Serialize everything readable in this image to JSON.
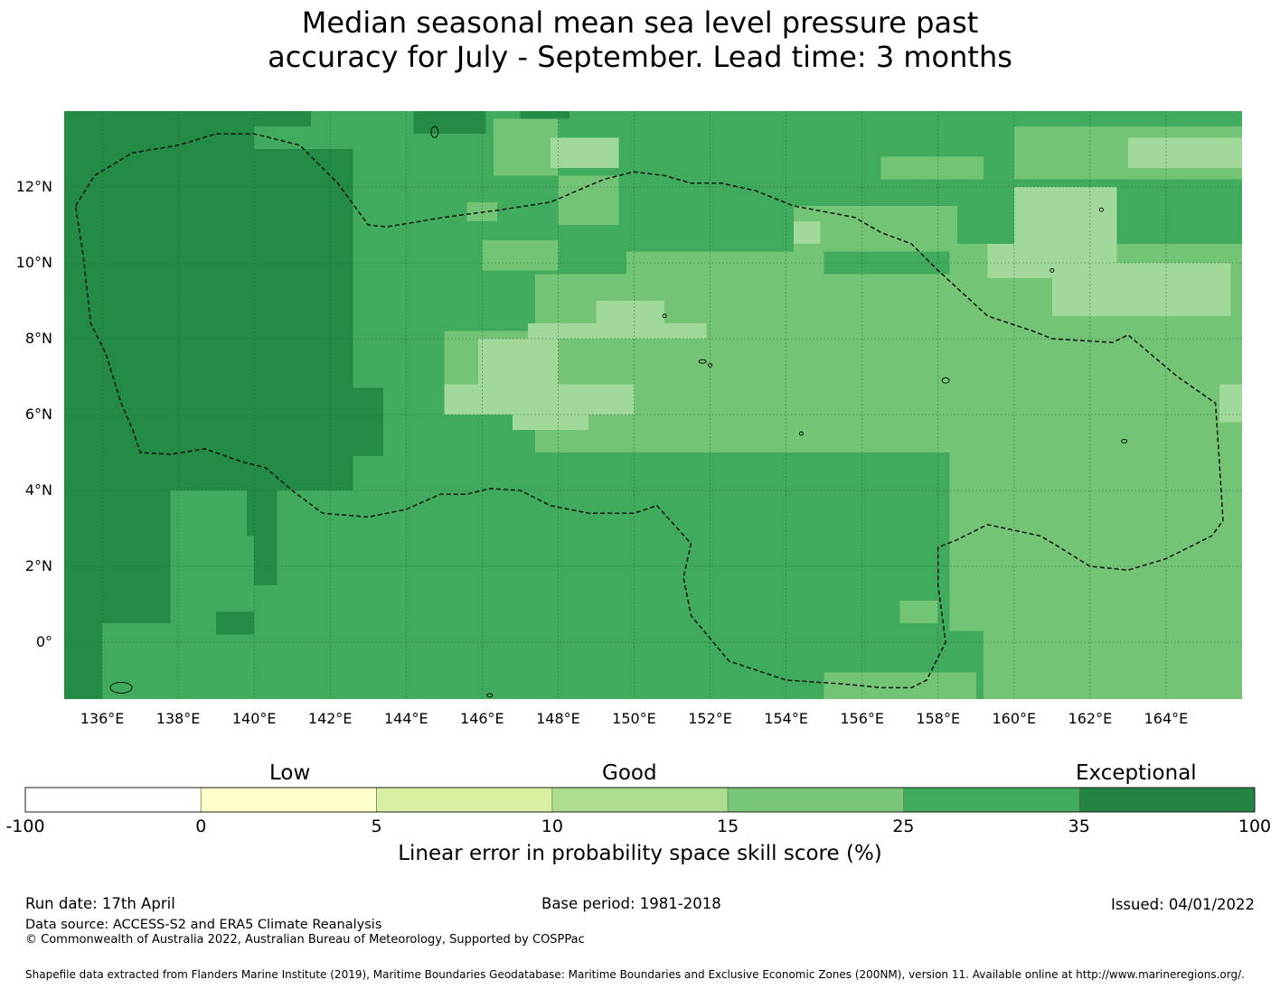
{
  "title": {
    "line1": "Median seasonal mean sea level pressure past",
    "line2": "accuracy for July - September. Lead time: 3 months"
  },
  "map": {
    "lon_ticks": [
      "136°E",
      "138°E",
      "140°E",
      "142°E",
      "144°E",
      "146°E",
      "148°E",
      "150°E",
      "152°E",
      "154°E",
      "156°E",
      "158°E",
      "160°E",
      "162°E",
      "164°E"
    ],
    "lat_ticks": [
      "12°N",
      "10°N",
      "8°N",
      "6°N",
      "4°N",
      "2°N",
      "0°"
    ],
    "extent": {
      "lon": [
        135.0,
        166.0
      ],
      "lat": [
        -1.5,
        14.0
      ]
    },
    "grid_step_deg": 0.833,
    "gridlines": true,
    "eez_boundary": "dashed",
    "colors": {
      "very_high": "#238b45",
      "high": "#41ab5d",
      "mid": "#74c476",
      "low": "#a1d99b",
      "lowest": "#c7e9c0",
      "coast": "#000000"
    }
  },
  "colorbar": {
    "categories": [
      "Low",
      "Good",
      "Exceptional"
    ],
    "bins": [
      {
        "from": -100,
        "to": 0,
        "color": "#ffffff"
      },
      {
        "from": 0,
        "to": 5,
        "color": "#ffffcc"
      },
      {
        "from": 5,
        "to": 10,
        "color": "#d9f0a3"
      },
      {
        "from": 10,
        "to": 15,
        "color": "#addd8e"
      },
      {
        "from": 15,
        "to": 25,
        "color": "#78c679"
      },
      {
        "from": 25,
        "to": 35,
        "color": "#41ab5d"
      },
      {
        "from": 35,
        "to": 100,
        "color": "#238443"
      }
    ],
    "ticks": [
      "-100",
      "0",
      "5",
      "10",
      "15",
      "25",
      "35",
      "100"
    ],
    "label": "Linear error in probability space skill score (%)"
  },
  "footer": {
    "run_date": "Run date: 17th April",
    "base_period": "Base period: 1981-2018",
    "issued": "Issued: 04/01/2022",
    "data_source": "Data source: ACCESS-S2 and ERA5 Climate Reanalysis",
    "copyright": "© Commonwealth of Australia 2022, Australian Bureau of Meteorology, Supported by COSPPac",
    "shapefile": "Shapefile data extracted from Flanders Marine Institute (2019), Maritime Boundaries Geodatabase: Maritime Boundaries and Exclusive Economic Zones (200NM), version 11. Available online at http://www.marineregions.org/."
  }
}
